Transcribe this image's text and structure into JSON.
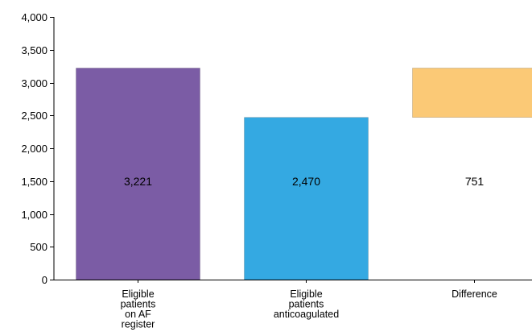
{
  "chart_data": {
    "type": "bar",
    "title": "",
    "xlabel": "",
    "ylabel": "",
    "ylim": [
      0,
      4000
    ],
    "yticks": [
      0,
      500,
      1000,
      1500,
      2000,
      2500,
      3000,
      3500,
      4000
    ],
    "ytick_labels": [
      "0",
      "500",
      "1,000",
      "1,500",
      "2,000",
      "2,500",
      "3,000",
      "3,500",
      "4,000"
    ],
    "grid": false,
    "legend": "none",
    "bars": [
      {
        "category": "Eligible patients on AF register",
        "category_lines": [
          "Eligible",
          "patients",
          "on AF",
          "register"
        ],
        "start": 0,
        "end": 3221,
        "label": "3,221",
        "color": "#7b5ca5"
      },
      {
        "category": "Eligible patients anticoagulated",
        "category_lines": [
          "Eligible",
          "patients",
          "anticoagulated"
        ],
        "start": 0,
        "end": 2470,
        "label": "2,470",
        "color": "#34a9e2"
      },
      {
        "category": "Difference",
        "category_lines": [
          "Difference"
        ],
        "start": 2470,
        "end": 3221,
        "label": "751",
        "color": "#fbc976"
      }
    ]
  }
}
